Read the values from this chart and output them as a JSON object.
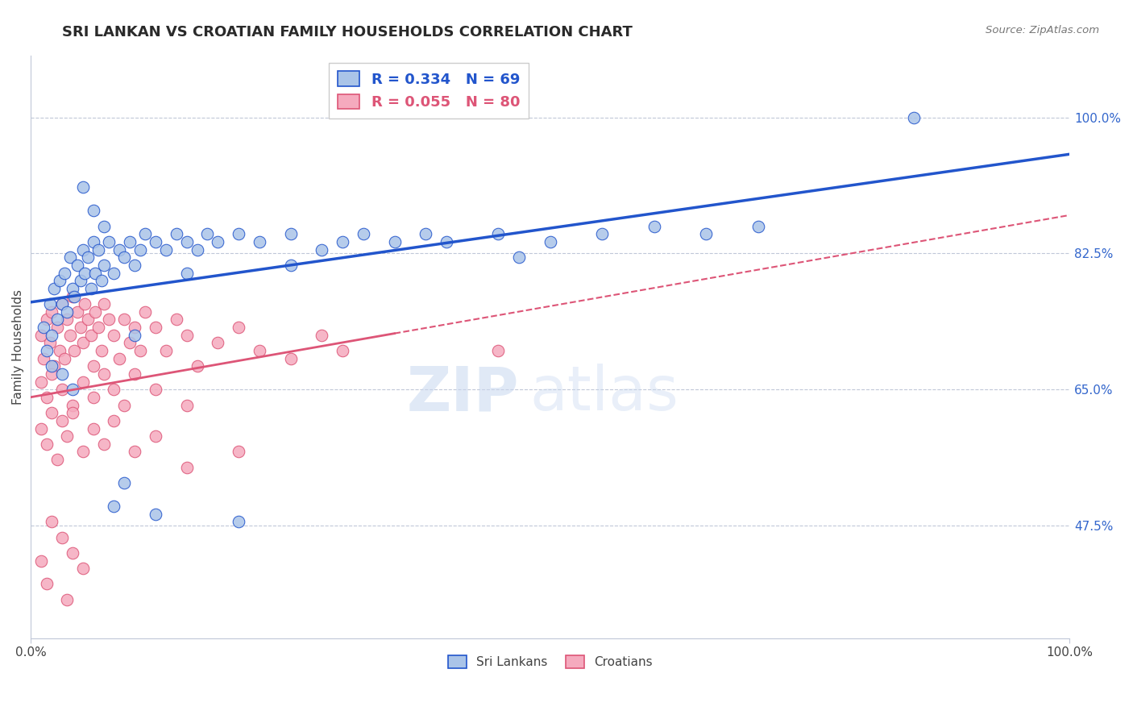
{
  "title": "SRI LANKAN VS CROATIAN FAMILY HOUSEHOLDS CORRELATION CHART",
  "source": "Source: ZipAtlas.com",
  "ylabel": "Family Households",
  "ytick_vals": [
    47.5,
    65.0,
    82.5,
    100.0
  ],
  "xlim": [
    0.0,
    100.0
  ],
  "ylim": [
    33.0,
    108.0
  ],
  "sri_lankan_color": "#aac4e8",
  "croatian_color": "#f5aabe",
  "trend_blue": "#2255cc",
  "trend_pink": "#dd5577",
  "R_sri": 0.334,
  "N_sri": 69,
  "R_cro": 0.055,
  "N_cro": 80,
  "sri_lankans_x": [
    1.2,
    1.5,
    1.8,
    2.0,
    2.2,
    2.5,
    2.8,
    3.0,
    3.2,
    3.5,
    3.8,
    4.0,
    4.2,
    4.5,
    4.8,
    5.0,
    5.2,
    5.5,
    5.8,
    6.0,
    6.2,
    6.5,
    6.8,
    7.0,
    7.5,
    8.0,
    8.5,
    9.0,
    9.5,
    10.0,
    10.5,
    11.0,
    12.0,
    13.0,
    14.0,
    15.0,
    16.0,
    17.0,
    18.0,
    20.0,
    22.0,
    25.0,
    28.0,
    30.0,
    32.0,
    35.0,
    38.0,
    40.0,
    45.0,
    50.0,
    55.0,
    60.0,
    65.0,
    70.0,
    2.0,
    3.0,
    4.0,
    5.0,
    6.0,
    7.0,
    8.0,
    9.0,
    12.0,
    15.0,
    20.0,
    85.0,
    47.0,
    25.0,
    10.0
  ],
  "sri_lankans_y": [
    73.0,
    70.0,
    76.0,
    72.0,
    78.0,
    74.0,
    79.0,
    76.0,
    80.0,
    75.0,
    82.0,
    78.0,
    77.0,
    81.0,
    79.0,
    83.0,
    80.0,
    82.0,
    78.0,
    84.0,
    80.0,
    83.0,
    79.0,
    81.0,
    84.0,
    80.0,
    83.0,
    82.0,
    84.0,
    81.0,
    83.0,
    85.0,
    84.0,
    83.0,
    85.0,
    84.0,
    83.0,
    85.0,
    84.0,
    85.0,
    84.0,
    85.0,
    83.0,
    84.0,
    85.0,
    84.0,
    85.0,
    84.0,
    85.0,
    84.0,
    85.0,
    86.0,
    85.0,
    86.0,
    68.0,
    67.0,
    65.0,
    91.0,
    88.0,
    86.0,
    50.0,
    53.0,
    49.0,
    80.0,
    48.0,
    100.0,
    82.0,
    81.0,
    72.0
  ],
  "croatians_x": [
    1.0,
    1.2,
    1.5,
    1.8,
    2.0,
    2.2,
    2.5,
    2.8,
    3.0,
    3.2,
    3.5,
    3.8,
    4.0,
    4.2,
    4.5,
    4.8,
    5.0,
    5.2,
    5.5,
    5.8,
    6.0,
    6.2,
    6.5,
    6.8,
    7.0,
    7.5,
    8.0,
    8.5,
    9.0,
    9.5,
    10.0,
    10.5,
    11.0,
    12.0,
    13.0,
    14.0,
    15.0,
    16.0,
    18.0,
    20.0,
    22.0,
    25.0,
    28.0,
    30.0,
    1.0,
    1.5,
    2.0,
    3.0,
    4.0,
    5.0,
    6.0,
    7.0,
    8.0,
    9.0,
    10.0,
    12.0,
    15.0,
    1.0,
    1.5,
    2.0,
    2.5,
    3.0,
    3.5,
    4.0,
    5.0,
    6.0,
    7.0,
    8.0,
    10.0,
    12.0,
    15.0,
    20.0,
    1.0,
    2.0,
    3.0,
    4.0,
    5.0,
    1.5,
    3.5,
    45.0
  ],
  "croatians_y": [
    72.0,
    69.0,
    74.0,
    71.0,
    75.0,
    68.0,
    73.0,
    70.0,
    76.0,
    69.0,
    74.0,
    72.0,
    77.0,
    70.0,
    75.0,
    73.0,
    71.0,
    76.0,
    74.0,
    72.0,
    68.0,
    75.0,
    73.0,
    70.0,
    76.0,
    74.0,
    72.0,
    69.0,
    74.0,
    71.0,
    73.0,
    70.0,
    75.0,
    73.0,
    70.0,
    74.0,
    72.0,
    68.0,
    71.0,
    73.0,
    70.0,
    69.0,
    72.0,
    70.0,
    66.0,
    64.0,
    67.0,
    65.0,
    63.0,
    66.0,
    64.0,
    67.0,
    65.0,
    63.0,
    67.0,
    65.0,
    63.0,
    60.0,
    58.0,
    62.0,
    56.0,
    61.0,
    59.0,
    62.0,
    57.0,
    60.0,
    58.0,
    61.0,
    57.0,
    59.0,
    55.0,
    57.0,
    43.0,
    48.0,
    46.0,
    44.0,
    42.0,
    40.0,
    38.0,
    70.0
  ],
  "watermark_zip_color": "#c8d8f0",
  "watermark_atlas_color": "#c8d8f0"
}
